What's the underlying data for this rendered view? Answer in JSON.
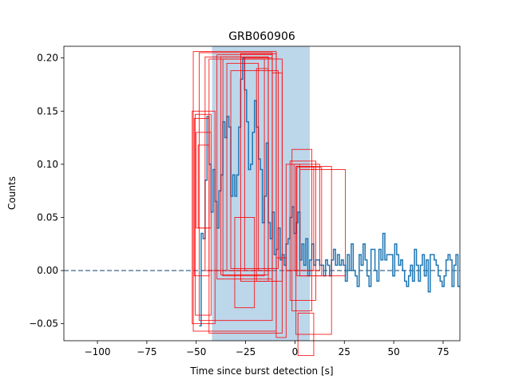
{
  "chart_data": {
    "type": "line",
    "title": "GRB060906",
    "xlabel": "Time since burst detection [s]",
    "ylabel": "Counts",
    "xlim": [
      -117,
      83.5
    ],
    "ylim": [
      -0.066,
      0.211
    ],
    "xticks": [
      -100,
      -75,
      -50,
      -25,
      0,
      25,
      50,
      75
    ],
    "xtick_labels": [
      "−100",
      "−75",
      "−50",
      "−25",
      "0",
      "25",
      "50",
      "75"
    ],
    "yticks": [
      -0.05,
      0.0,
      0.05,
      0.1,
      0.15,
      0.2
    ],
    "ytick_labels": [
      "−0.05",
      "0.00",
      "0.05",
      "0.10",
      "0.15",
      "0.20"
    ],
    "colors": {
      "series": "#1f77b4",
      "span": "#bcd6ea",
      "boxes": "#ff0000",
      "zero_line": "#5f7f9f"
    },
    "grid": false,
    "legend": "none",
    "shaded_interval": [
      -42,
      7.5
    ],
    "step_bin_width": 1.0,
    "series": [
      {
        "x": [
          -48,
          -47,
          -46,
          -45,
          -44,
          -43,
          -42,
          -41,
          -40,
          -39,
          -38,
          -37,
          -36,
          -35,
          -34,
          -33,
          -32,
          -31,
          -30,
          -29,
          -28,
          -27,
          -26,
          -25,
          -24,
          -23,
          -22,
          -21,
          -20,
          -19,
          -18,
          -17,
          -16,
          -15,
          -14,
          -13,
          -12,
          -11,
          -10,
          -9,
          -8,
          -7,
          -6,
          -5,
          -4,
          -3,
          -2,
          -1,
          0,
          1,
          2,
          3,
          4,
          5,
          6,
          7,
          8,
          9,
          10,
          11,
          12,
          13,
          14,
          15,
          16,
          17,
          18,
          19,
          20,
          21,
          22,
          23,
          24,
          25,
          26,
          27,
          28,
          29,
          30,
          31,
          32,
          33,
          34,
          35,
          36,
          37,
          38,
          39,
          40,
          41,
          42,
          43,
          44,
          45,
          46,
          47,
          48,
          49,
          50,
          51,
          52,
          53,
          54,
          55,
          56,
          57,
          58,
          59,
          60,
          61,
          62,
          63,
          64,
          65,
          66,
          67,
          68,
          69,
          70,
          71,
          72,
          73,
          74,
          75,
          76,
          77,
          78,
          79,
          80,
          81,
          82,
          83
        ],
        "y": [
          -0.052,
          0.035,
          0.03,
          0.085,
          0.145,
          0.1,
          0.055,
          0.095,
          0.065,
          0.04,
          0.075,
          0.09,
          0.14,
          0.125,
          0.145,
          0.135,
          0.07,
          0.09,
          0.07,
          0.09,
          0.135,
          0.18,
          0.2,
          0.17,
          0.14,
          0.095,
          0.1,
          0.13,
          0.16,
          0.135,
          0.105,
          0.095,
          0.045,
          0.07,
          0.12,
          0.045,
          0.03,
          0.055,
          0.015,
          0.02,
          0.04,
          0.01,
          0.015,
          0.005,
          0.025,
          0.03,
          0.05,
          0.06,
          0.035,
          0.045,
          0.055,
          0.01,
          0.025,
          0.005,
          0.03,
          -0.005,
          0.01,
          0.025,
          0.005,
          0.01,
          0.01,
          0.005,
          0.005,
          -0.005,
          0.01,
          0.005,
          -0.005,
          0.01,
          0.02,
          0.005,
          0.015,
          0.005,
          0.01,
          0.005,
          -0.01,
          0.015,
          0.0,
          0.025,
          0.0,
          -0.005,
          -0.015,
          0.015,
          0.005,
          0.025,
          0.01,
          -0.005,
          -0.015,
          0.02,
          0.02,
          0.0,
          -0.01,
          0.02,
          0.01,
          0.035,
          0.01,
          0.015,
          0.015,
          0.015,
          -0.005,
          0.025,
          0.015,
          0.005,
          0.01,
          0.0,
          -0.01,
          -0.015,
          -0.005,
          0.005,
          -0.01,
          0.02,
          0.005,
          -0.01,
          0.005,
          0.015,
          -0.005,
          0.01,
          -0.02,
          0.015,
          0.015,
          0.01,
          0.005,
          -0.005,
          -0.01,
          -0.015,
          -0.005,
          0.01,
          0.015,
          0.01,
          -0.015,
          0.005,
          0.015,
          -0.015
        ]
      }
    ],
    "annotation_boxes": [
      {
        "x0": -51.5,
        "x1": -9.5,
        "y0": -0.057,
        "y1": 0.206
      },
      {
        "x0": -48.5,
        "x1": -11.5,
        "y0": -0.047,
        "y1": 0.205
      },
      {
        "x0": -45.5,
        "x1": -13.5,
        "y0": 0.0,
        "y1": 0.201
      },
      {
        "x0": -43.5,
        "x1": -6.5,
        "y0": -0.059,
        "y1": 0.199
      },
      {
        "x0": -39.5,
        "x1": -11.5,
        "y0": -0.008,
        "y1": 0.203
      },
      {
        "x0": -37.5,
        "x1": -13.5,
        "y0": -0.004,
        "y1": 0.201
      },
      {
        "x0": -36.5,
        "x1": -15.5,
        "y0": -0.005,
        "y1": 0.199
      },
      {
        "x0": -34.5,
        "x1": -18.5,
        "y0": 0.0,
        "y1": 0.195
      },
      {
        "x0": -27.5,
        "x1": -9.5,
        "y0": -0.01,
        "y1": 0.204
      },
      {
        "x0": -25.5,
        "x1": -11.5,
        "y0": 0.0,
        "y1": 0.2
      },
      {
        "x0": -19.5,
        "x1": -13.5,
        "y0": -0.01,
        "y1": 0.19
      },
      {
        "x0": -32.5,
        "x1": -8.5,
        "y0": 0.002,
        "y1": 0.188
      },
      {
        "x0": -11.5,
        "x1": -6.5,
        "y0": -0.01,
        "y1": 0.186
      },
      {
        "x0": -30.5,
        "x1": -20.5,
        "y0": -0.035,
        "y1": 0.05
      },
      {
        "x0": -9.5,
        "x1": -4.5,
        "y0": -0.063,
        "y1": 0.012
      },
      {
        "x0": -50.5,
        "x1": -42.5,
        "y0": -0.042,
        "y1": 0.147
      },
      {
        "x0": -52.0,
        "x1": -40.5,
        "y0": -0.05,
        "y1": 0.15
      },
      {
        "x0": -51.0,
        "x1": -43.5,
        "y0": -0.005,
        "y1": 0.143
      },
      {
        "x0": -50.0,
        "x1": -42.5,
        "y0": 0.04,
        "y1": 0.13
      },
      {
        "x0": -49.0,
        "x1": -43.5,
        "y0": 0.04,
        "y1": 0.118
      },
      {
        "x0": -2.5,
        "x1": 10.5,
        "y0": -0.028,
        "y1": 0.103
      },
      {
        "x0": -1.5,
        "x1": 8.5,
        "y0": -0.038,
        "y1": 0.114
      },
      {
        "x0": -0.5,
        "x1": 12.5,
        "y0": 0.0,
        "y1": 0.1
      },
      {
        "x0": 0.5,
        "x1": 9.5,
        "y0": 0.0,
        "y1": 0.098
      },
      {
        "x0": 1.0,
        "x1": 13.5,
        "y0": -0.005,
        "y1": 0.097
      },
      {
        "x0": 0.5,
        "x1": 18.5,
        "y0": -0.06,
        "y1": 0.098
      },
      {
        "x0": 2.5,
        "x1": 25.5,
        "y0": -0.005,
        "y1": 0.095
      },
      {
        "x0": -4.5,
        "x1": 2.5,
        "y0": 0.0,
        "y1": 0.1
      },
      {
        "x0": 1.5,
        "x1": 9.5,
        "y0": -0.08,
        "y1": -0.04
      }
    ]
  }
}
